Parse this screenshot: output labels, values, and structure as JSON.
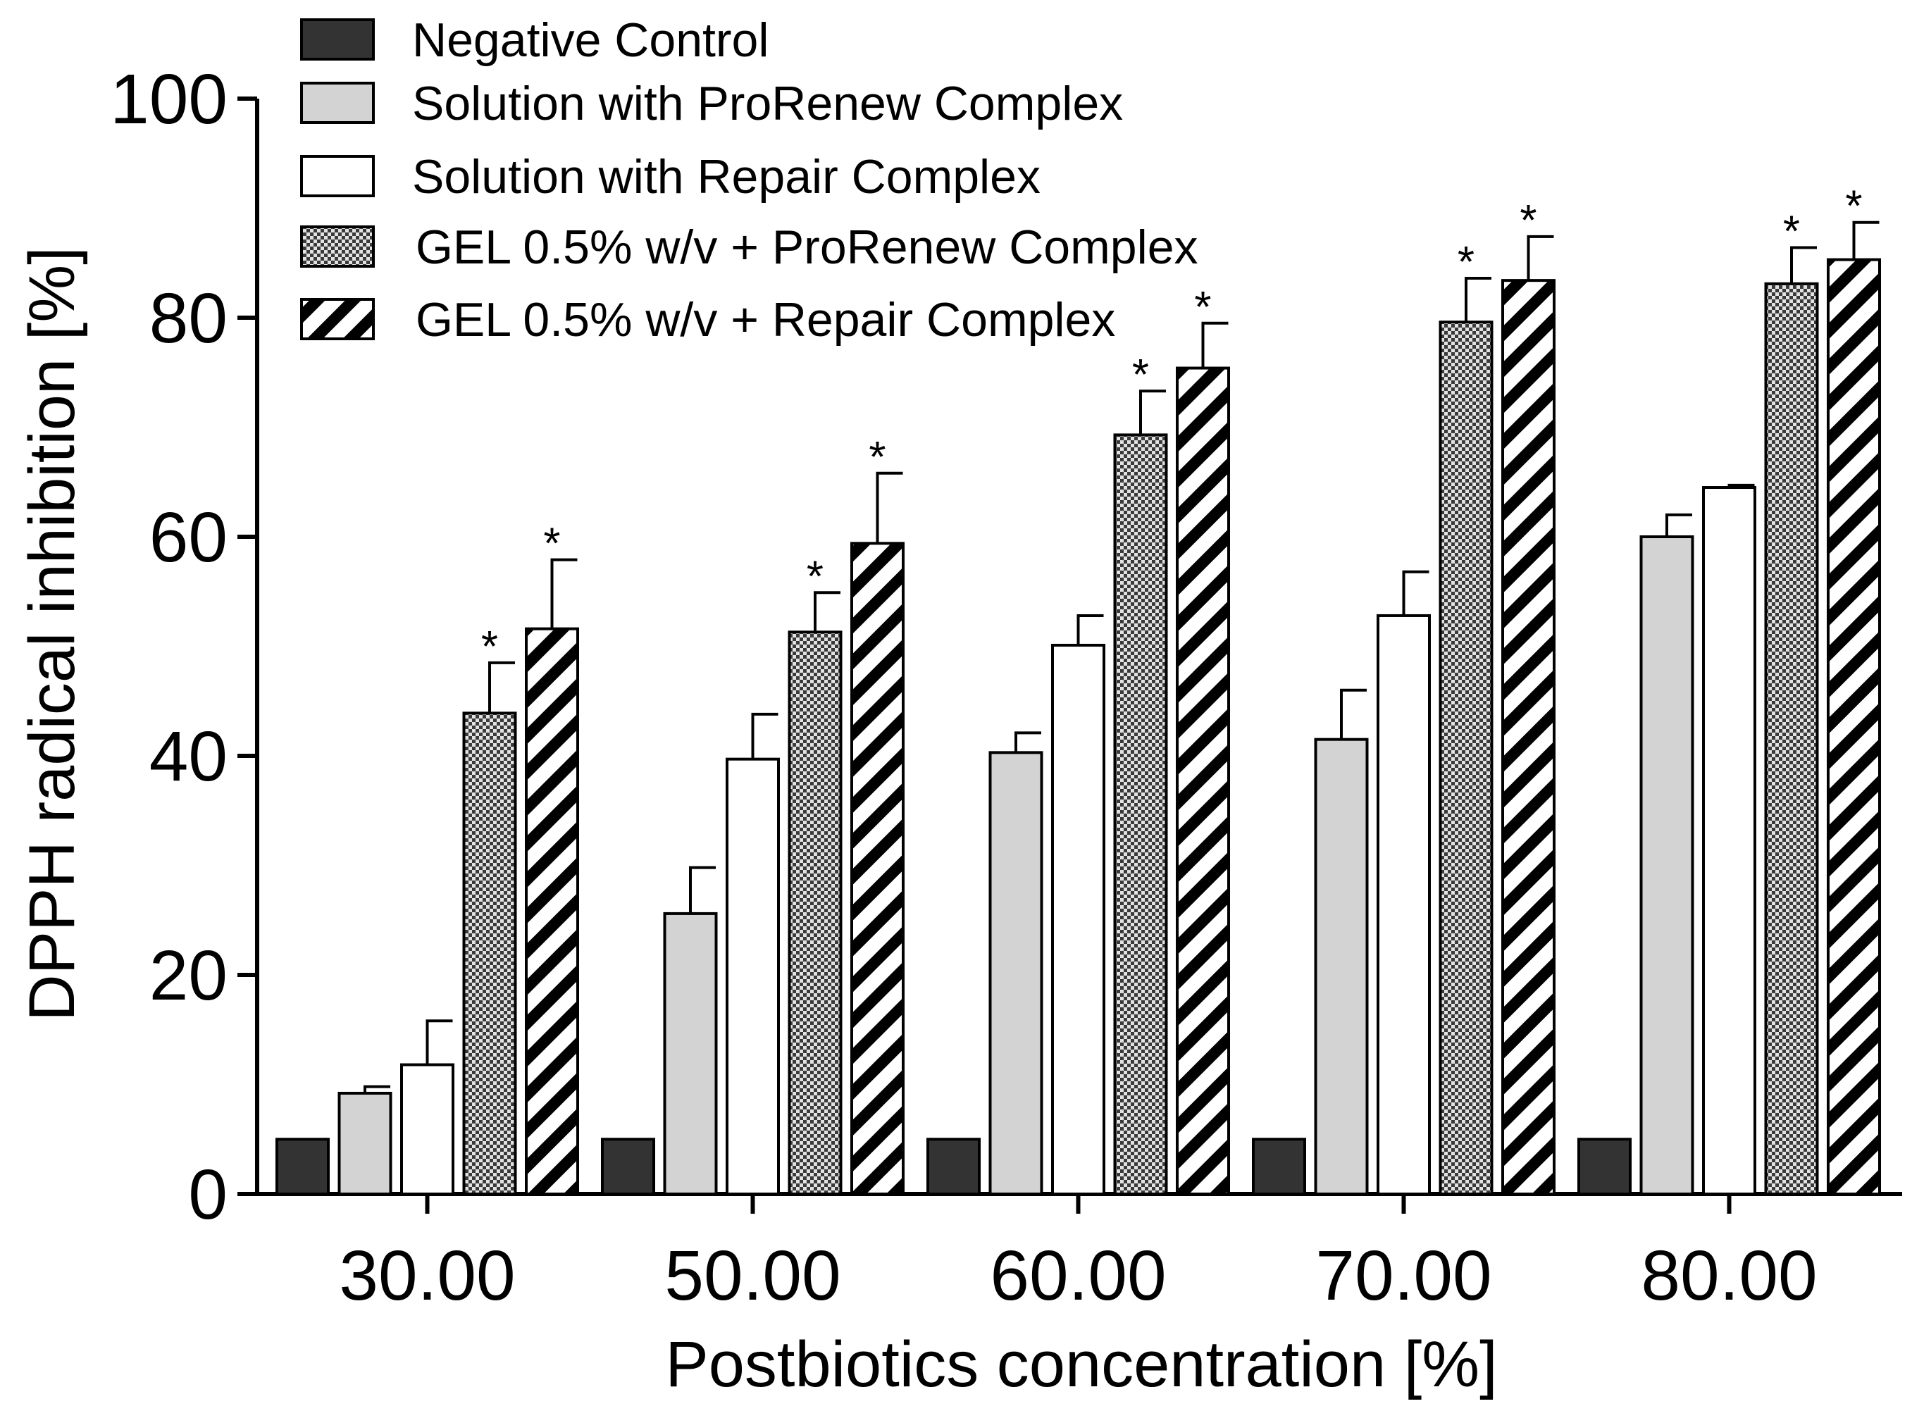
{
  "chart_data": {
    "type": "bar",
    "title": "",
    "xlabel": "Postbiotics concentration [%]",
    "ylabel": "DPPH radical inhibition [%]",
    "ylim": [
      0,
      100
    ],
    "yticks": [
      "0",
      "20",
      "40",
      "60",
      "80",
      "100"
    ],
    "grid": false,
    "legend_position": "top-left",
    "categories": [
      "30.00",
      "50.00",
      "60.00",
      "70.00",
      "80.00"
    ],
    "series": [
      {
        "name": "Negative Control",
        "pattern": "solid-dark",
        "color": "#333333",
        "values": [
          5,
          5,
          5,
          5,
          5
        ],
        "errors": [
          0,
          0,
          0,
          0,
          0
        ],
        "significant": [
          false,
          false,
          false,
          false,
          false
        ]
      },
      {
        "name": "Solution with ProRenew Complex",
        "pattern": "solid-light",
        "color": "#d3d3d3",
        "values": [
          9.2,
          25.6,
          40.3,
          41.5,
          60.0
        ],
        "errors": [
          0.6,
          4.2,
          1.8,
          4.5,
          2.0
        ],
        "significant": [
          false,
          false,
          false,
          false,
          false
        ]
      },
      {
        "name": "Solution with Repair Complex",
        "pattern": "open",
        "color": "#ffffff",
        "values": [
          11.8,
          39.7,
          50.1,
          52.8,
          64.5
        ],
        "errors": [
          4.0,
          4.1,
          2.7,
          4.0,
          0.2
        ],
        "significant": [
          false,
          false,
          false,
          false,
          false
        ]
      },
      {
        "name": "GEL 0.5% w/v + ProRenew Complex",
        "pattern": "checker",
        "color": "#888888",
        "values": [
          43.9,
          51.3,
          69.3,
          79.6,
          83.1
        ],
        "errors": [
          4.6,
          3.6,
          4.0,
          4.0,
          3.3
        ],
        "significant": [
          true,
          true,
          true,
          true,
          true
        ]
      },
      {
        "name": "GEL 0.5% w/v + Repair Complex",
        "pattern": "diagonal",
        "color": "#000000",
        "values": [
          51.6,
          59.4,
          75.4,
          83.4,
          85.3
        ],
        "errors": [
          6.3,
          6.4,
          4.1,
          4.0,
          3.4
        ],
        "significant": [
          true,
          true,
          true,
          true,
          true
        ]
      }
    ],
    "significance_marker": "*"
  }
}
